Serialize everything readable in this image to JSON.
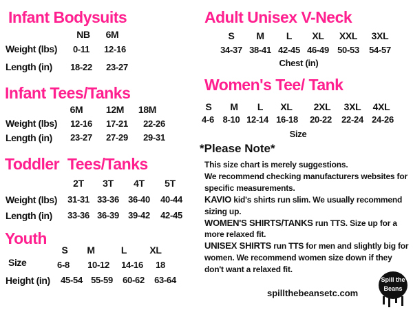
{
  "colors": {
    "heading": "#ff1f8e",
    "text": "#111111"
  },
  "infant_bodysuits": {
    "title": "Infant Bodysuits",
    "sizes": [
      "NB",
      "6M"
    ],
    "rows": [
      {
        "label": "Weight (lbs)",
        "values": [
          "0-11",
          "12-16"
        ]
      },
      {
        "label": "Length (in)",
        "values": [
          "18-22",
          "23-27"
        ]
      }
    ]
  },
  "infant_tees": {
    "title": "Infant Tees/Tanks",
    "sizes": [
      "6M",
      "12M",
      "18M"
    ],
    "rows": [
      {
        "label": "Weight (lbs)",
        "values": [
          "12-16",
          "17-21",
          "22-26"
        ]
      },
      {
        "label": "Length (in)",
        "values": [
          "23-27",
          "27-29",
          "29-31"
        ]
      }
    ]
  },
  "toddler_tees": {
    "title": "Toddler  Tees/Tanks",
    "sizes": [
      "2T",
      "3T",
      "4T",
      "5T"
    ],
    "rows": [
      {
        "label": "Weight (lbs)",
        "values": [
          "31-31",
          "33-36",
          "36-40",
          "40-44"
        ]
      },
      {
        "label": "Length (in)",
        "values": [
          "33-36",
          "36-39",
          "39-42",
          "42-45"
        ]
      }
    ]
  },
  "youth": {
    "title": "Youth",
    "sizes": [
      "S",
      "M",
      "L",
      "XL"
    ],
    "rows": [
      {
        "label": "Size",
        "values": [
          "6-8",
          "10-12",
          "14-16",
          "18"
        ]
      },
      {
        "label": "Height (in)",
        "values": [
          "45-54",
          "55-59",
          "60-62",
          "63-64"
        ]
      }
    ]
  },
  "adult_unisex": {
    "title": "Adult Unisex V-Neck",
    "sizes": [
      "S",
      "M",
      "L",
      "XL",
      "XXL",
      "3XL"
    ],
    "values": [
      "34-37",
      "38-41",
      "42-45",
      "46-49",
      "50-53",
      "54-57"
    ],
    "caption": "Chest (in)"
  },
  "womens": {
    "title": "Women's Tee/ Tank",
    "sizes": [
      "S",
      "M",
      "L",
      "XL",
      "2XL",
      "3XL",
      "4XL"
    ],
    "values": [
      "4-6",
      "8-10",
      "12-14",
      "16-18",
      "20-22",
      "22-24",
      "24-26"
    ],
    "caption": "Size"
  },
  "note": {
    "title": "*Please Note*",
    "line1": "This size chart is merely suggestions.",
    "line2": "We recommend checking manufacturers websites for specific measurements.",
    "kavio_bold": "KAVIO",
    "kavio_text": " kid's shirts run slim. We usually recommend sizing up.",
    "womens_bold": "WOMEN'S SHIRTS/TANKS",
    "womens_text": " run TTS. Size up for a more relaxed fit.",
    "unisex_bold": "UNISEX SHIRTS",
    "unisex_text": " run TTS for men and slightly big for women. We recommend women size down if they don't want a relaxed fit."
  },
  "footer": {
    "website": "spillthebeansetc.com",
    "logo_text": "Spill the Beans"
  }
}
